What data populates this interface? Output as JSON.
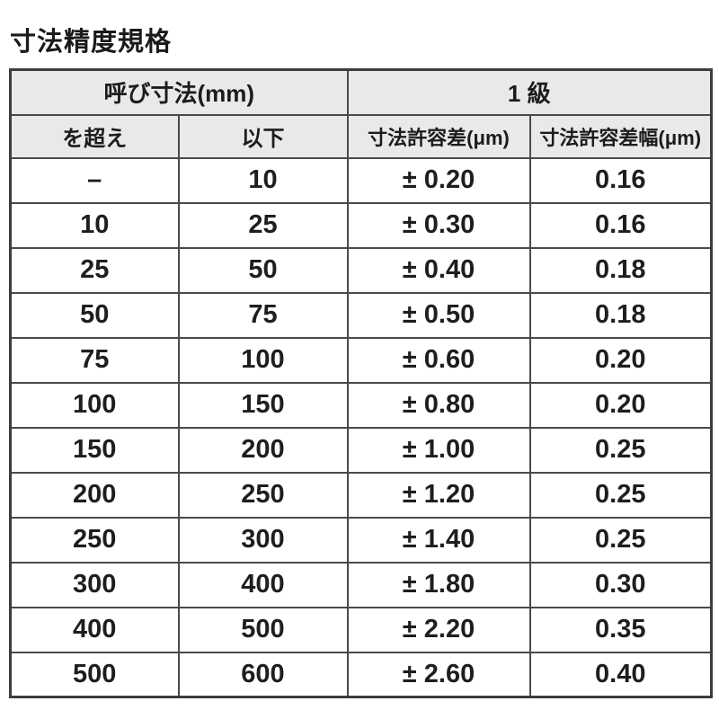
{
  "page": {
    "title": "寸法精度規格"
  },
  "colors": {
    "page_bg": "#ffffff",
    "header_bg": "#e9e9e9",
    "border": "#4a4a4a",
    "text": "#1c1c1c"
  },
  "table": {
    "header_groups": {
      "nominal_size": "呼び寸法(mm)",
      "grade": "1 級"
    },
    "columns": [
      "を超え",
      "以下",
      "寸法許容差(μm)",
      "寸法許容差幅(μm)"
    ],
    "rows": [
      [
        "–",
        "10",
        "± 0.20",
        "0.16"
      ],
      [
        "10",
        "25",
        "± 0.30",
        "0.16"
      ],
      [
        "25",
        "50",
        "± 0.40",
        "0.18"
      ],
      [
        "50",
        "75",
        "± 0.50",
        "0.18"
      ],
      [
        "75",
        "100",
        "± 0.60",
        "0.20"
      ],
      [
        "100",
        "150",
        "± 0.80",
        "0.20"
      ],
      [
        "150",
        "200",
        "± 1.00",
        "0.25"
      ],
      [
        "200",
        "250",
        "± 1.20",
        "0.25"
      ],
      [
        "250",
        "300",
        "± 1.40",
        "0.25"
      ],
      [
        "300",
        "400",
        "± 1.80",
        "0.30"
      ],
      [
        "400",
        "500",
        "± 2.20",
        "0.35"
      ],
      [
        "500",
        "600",
        "± 2.60",
        "0.40"
      ]
    ]
  }
}
